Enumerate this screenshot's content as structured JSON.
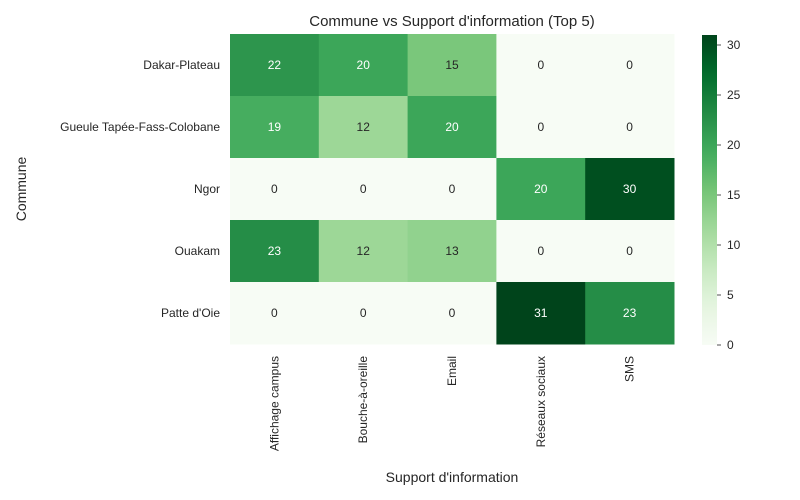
{
  "chart_data": {
    "type": "heatmap",
    "title": "Commune vs Support d'information (Top 5)",
    "xlabel": "Support d'information",
    "ylabel": "Commune",
    "x_categories": [
      "Affichage campus",
      "Bouche-à-oreille",
      "Email",
      "Réseaux sociaux",
      "SMS"
    ],
    "y_categories": [
      "Dakar-Plateau",
      "Gueule Tapée-Fass-Colobane",
      "Ngor",
      "Ouakam",
      "Patte d'Oie"
    ],
    "values": [
      [
        22,
        20,
        15,
        0,
        0
      ],
      [
        19,
        12,
        20,
        0,
        0
      ],
      [
        0,
        0,
        0,
        20,
        30
      ],
      [
        23,
        12,
        13,
        0,
        0
      ],
      [
        0,
        0,
        0,
        31,
        23
      ]
    ],
    "colormap": "Greens",
    "colorbar": {
      "min": 0,
      "max": 31,
      "ticks": [
        0,
        5,
        10,
        15,
        20,
        25,
        30
      ]
    },
    "grid": false
  }
}
